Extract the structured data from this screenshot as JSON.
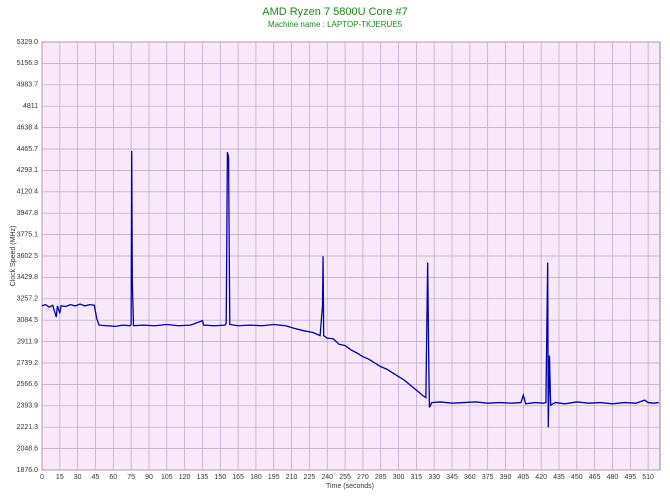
{
  "chart_data": {
    "type": "line",
    "title": "AMD Ryzen 7 5800U Core #7",
    "subtitle": "Machine name : LAPTOP-TKJERUE5",
    "x_label": "Time (seconds)",
    "y_label": "Clock Speed (MHz)",
    "color": "#0000b0",
    "grid": true,
    "xlim": [
      0,
      520
    ],
    "ylim": [
      1876,
      5329
    ],
    "xticks": [
      0,
      15,
      30,
      45,
      60,
      75,
      90,
      105,
      120,
      135,
      150,
      165,
      180,
      195,
      210,
      225,
      240,
      255,
      270,
      285,
      300,
      315,
      330,
      345,
      360,
      375,
      390,
      405,
      420,
      435,
      450,
      465,
      480,
      495,
      510
    ],
    "yticks": [
      {
        "value": 1876,
        "label": "1876.0"
      },
      2048.6,
      2221.3,
      2393.9,
      2566.6,
      2739.2,
      2911.9,
      3084.5,
      3257.2,
      3429.8,
      3602.5,
      3775.1,
      3947.8,
      4120.4,
      4293.1,
      4465.7,
      4638.4,
      4811,
      4983.7,
      5156.3,
      {
        "value": 5329,
        "label": "5329.0"
      }
    ],
    "x": [
      0,
      3,
      6,
      9,
      12,
      13,
      15,
      16,
      20,
      24,
      28,
      32,
      36,
      40,
      44,
      46,
      48,
      55,
      62,
      68,
      74,
      75,
      75.5,
      76,
      77,
      85,
      95,
      105,
      115,
      125,
      135,
      136,
      145,
      154,
      155,
      156,
      157,
      158,
      165,
      175,
      185,
      195,
      205,
      212,
      220,
      228,
      234,
      236,
      236.5,
      237,
      240,
      245,
      250,
      255,
      260,
      265,
      270,
      275,
      280,
      285,
      290,
      295,
      300,
      305,
      310,
      315,
      320,
      323,
      324.5,
      325.5,
      326,
      328,
      335,
      345,
      355,
      365,
      375,
      385,
      395,
      403,
      405,
      407,
      415,
      422,
      424,
      425.5,
      426,
      427,
      428,
      432,
      440,
      450,
      460,
      470,
      480,
      490,
      500,
      507,
      510,
      515,
      519
    ],
    "values": [
      3200,
      3210,
      3190,
      3205,
      3110,
      3200,
      3140,
      3200,
      3195,
      3210,
      3200,
      3215,
      3200,
      3210,
      3205,
      3100,
      3045,
      3040,
      3035,
      3045,
      3040,
      3050,
      4450,
      3400,
      3040,
      3045,
      3040,
      3050,
      3040,
      3045,
      3080,
      3045,
      3040,
      3045,
      3060,
      4440,
      4400,
      3050,
      3040,
      3045,
      3040,
      3050,
      3040,
      3020,
      3000,
      2985,
      2960,
      3200,
      3600,
      2960,
      2940,
      2935,
      2890,
      2880,
      2845,
      2820,
      2790,
      2770,
      2740,
      2710,
      2690,
      2660,
      2630,
      2600,
      2560,
      2520,
      2480,
      2460,
      3550,
      2700,
      2380,
      2420,
      2425,
      2415,
      2420,
      2425,
      2415,
      2420,
      2415,
      2420,
      2480,
      2410,
      2420,
      2415,
      2420,
      3550,
      2220,
      2800,
      2400,
      2420,
      2410,
      2425,
      2415,
      2420,
      2410,
      2420,
      2415,
      2440,
      2420,
      2415,
      2420
    ]
  }
}
